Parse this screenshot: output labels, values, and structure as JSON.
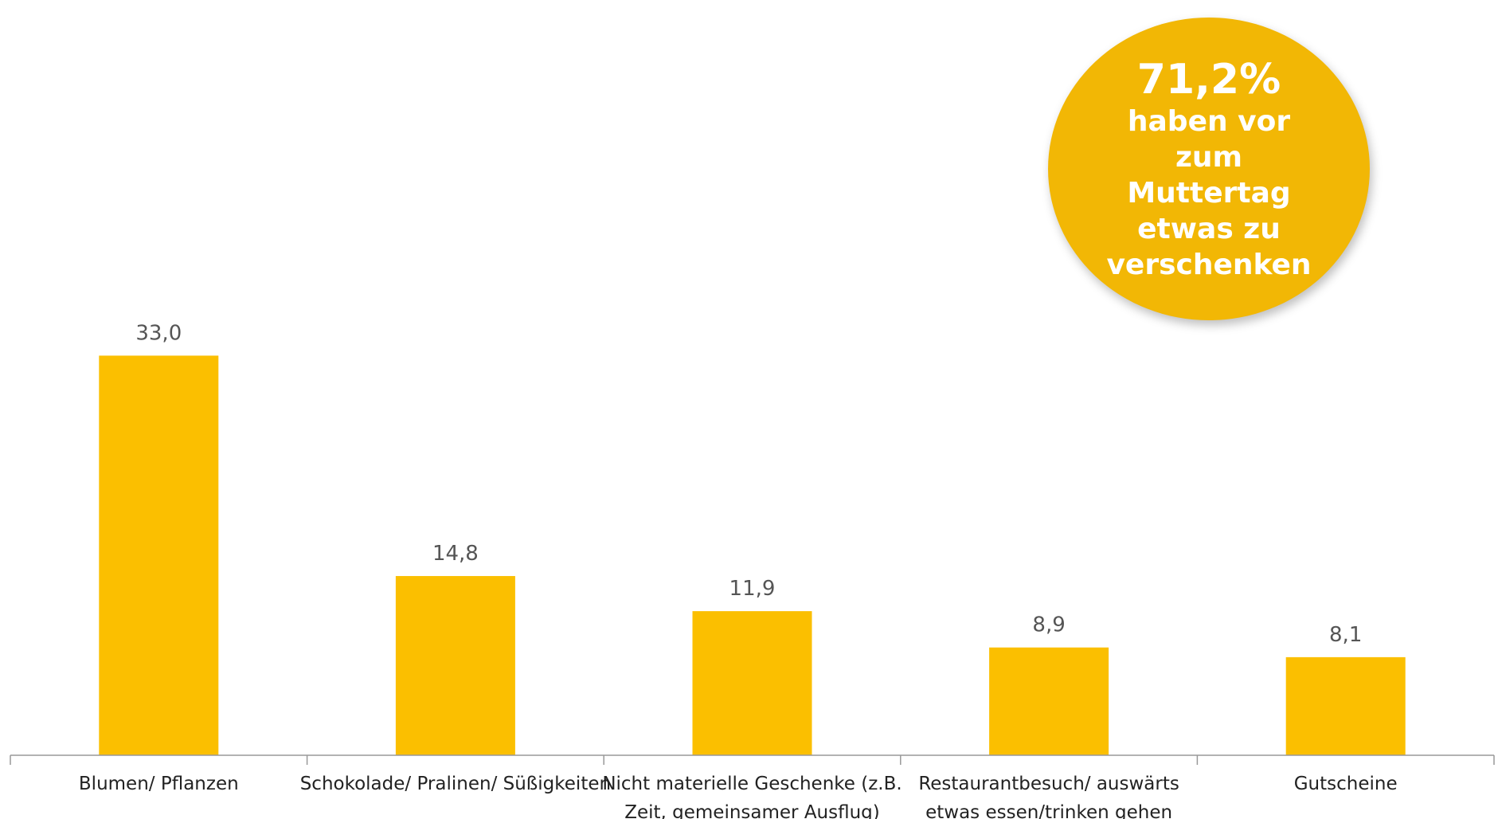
{
  "chart_data": {
    "type": "bar",
    "categories": [
      "Blumen/ Pflanzen",
      "Schokolade/ Pralinen/ Süßigkeiten",
      "Nicht materielle Geschenke (z.B. Zeit, gemeinsamer Ausflug)",
      "Restaurantbesuch/ auswärts etwas essen/trinken gehen",
      "Gutscheine"
    ],
    "category_lines": [
      [
        "Blumen/ Pflanzen"
      ],
      [
        "Schokolade/ Pralinen/ Süßigkeiten"
      ],
      [
        "Nicht materielle Geschenke (z.B.",
        "Zeit, gemeinsamer Ausflug)"
      ],
      [
        "Restaurantbesuch/ auswärts",
        "etwas essen/trinken gehen"
      ],
      [
        "Gutscheine"
      ]
    ],
    "values": [
      33.0,
      14.8,
      11.9,
      8.9,
      8.1
    ],
    "value_labels": [
      "33,0",
      "14,8",
      "11,9",
      "8,9",
      "8,1"
    ],
    "ylim": [
      0,
      40
    ],
    "grid": false,
    "bar_color": "#fbbf00",
    "axis_color": "#999999"
  },
  "callout": {
    "value": "71,2%",
    "text": "haben vor zum Muttertag etwas zu verschenken",
    "color": "#f2b705"
  }
}
